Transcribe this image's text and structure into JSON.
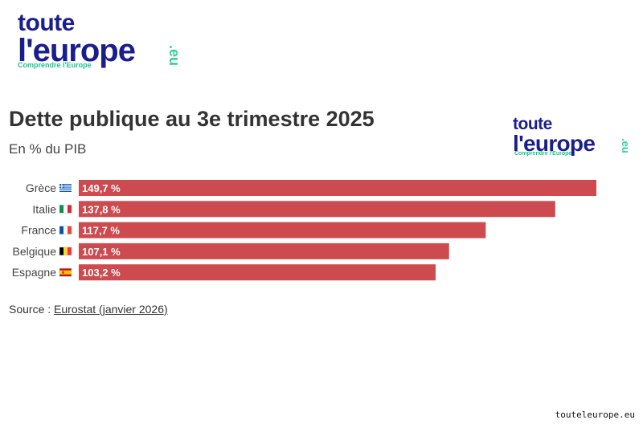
{
  "logo": {
    "line1": "toute",
    "line2": "l'europe",
    "eu": ".eu",
    "tagline": "Comprendre l'Europe"
  },
  "title": "Dette publique au 3e trimestre 2025",
  "subtitle": "En % du PIB",
  "source": {
    "prefix": "Source : ",
    "link": "Eurostat (janvier 2026)"
  },
  "footer": "touteleurope.eu",
  "colors": {
    "bar": "#cd4a4e",
    "brand": "#1a1e8c",
    "accent": "#2fd19a"
  },
  "chart_data": {
    "type": "bar",
    "orientation": "horizontal",
    "title": "Dette publique au 3e trimestre 2025",
    "subtitle": "En % du PIB",
    "categories": [
      "Grèce",
      "Italie",
      "France",
      "Belgique",
      "Espagne"
    ],
    "values": [
      149.7,
      137.8,
      117.7,
      107.1,
      103.2
    ],
    "data_labels": [
      "149,7 %",
      "137,8 %",
      "117,7 %",
      "107,1 %",
      "103,2 %"
    ],
    "flags": [
      "greece-flag-icon",
      "italy-flag-icon",
      "france-flag-icon",
      "belgium-flag-icon",
      "spain-flag-icon"
    ],
    "grid": false
  }
}
